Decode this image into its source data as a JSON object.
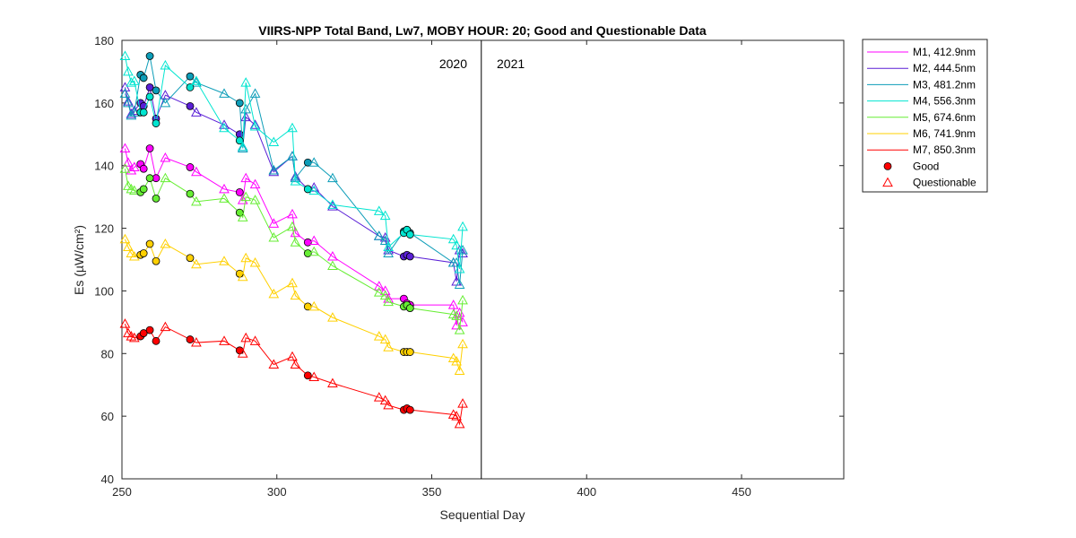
{
  "chart_data": {
    "type": "line",
    "title": "VIIRS-NPP Total Band,  Lw7, MOBY HOUR: 20;  Good and Questionable Data",
    "xlabel": "Sequential Day",
    "ylabel": "Es (µW/cm²)",
    "xlim": [
      250,
      483
    ],
    "ylim": [
      40,
      180
    ],
    "xticks": [
      250,
      300,
      350,
      400,
      450
    ],
    "yticks": [
      40,
      60,
      80,
      100,
      120,
      140,
      160,
      180
    ],
    "grid": false,
    "legend_position": "outside-right-top",
    "divider_x": 366,
    "annotations": [
      {
        "text": "2020",
        "x": 360,
        "y": 170,
        "anchor": "end"
      },
      {
        "text": "2021",
        "x": 370,
        "y": 170,
        "anchor": "start"
      }
    ],
    "legend_markers": {
      "good_label": "Good",
      "questionable_label": "Questionable"
    },
    "x": [
      251,
      252,
      253,
      254,
      256,
      257,
      259,
      261,
      264,
      272,
      274,
      283,
      288,
      289,
      290,
      293,
      299,
      305,
      306,
      310,
      312,
      318,
      333,
      335,
      336,
      341,
      342,
      343,
      357,
      358,
      359,
      360
    ],
    "good_indices": [
      4,
      5,
      6,
      7,
      9,
      12,
      19,
      25,
      26,
      27
    ],
    "series": [
      {
        "name": "M1, 412.9nm",
        "color": "#FF00FF",
        "values": [
          145.5,
          141,
          138.5,
          139.5,
          140.5,
          139,
          145.5,
          136,
          142.5,
          139.5,
          138,
          132.5,
          131.5,
          129,
          136,
          134,
          121.5,
          124.5,
          118.5,
          115.5,
          116,
          111,
          101.5,
          100,
          97.5,
          97.5,
          96,
          95.5,
          95.5,
          89,
          93,
          90
        ]
      },
      {
        "name": "M2, 444.5nm",
        "color": "#5A1FD6",
        "values": [
          165,
          160.5,
          156.5,
          157.5,
          160,
          159,
          165,
          155,
          162.5,
          159,
          157,
          153,
          150,
          146,
          155.5,
          153,
          138,
          143,
          136.5,
          132.5,
          133,
          127,
          117.5,
          117,
          113,
          111,
          111.5,
          111,
          109,
          103,
          113,
          112
        ]
      },
      {
        "name": "M3, 481.2nm",
        "color": "#0D9DB8",
        "values": [
          163,
          160,
          156,
          157,
          169,
          168,
          175,
          164,
          160,
          168.5,
          166.5,
          163,
          160,
          145.5,
          158,
          163,
          138.5,
          143,
          136,
          141,
          141,
          136,
          117.5,
          116,
          112,
          119,
          119.5,
          118.5,
          109,
          109,
          102,
          113
        ]
      },
      {
        "name": "M4, 556.3nm",
        "color": "#00E5D0",
        "values": [
          175,
          170,
          166.5,
          167,
          157,
          157,
          162,
          153.5,
          172,
          165,
          167,
          152,
          148,
          146,
          166.5,
          152.5,
          147.5,
          152,
          135,
          132.5,
          132,
          127.5,
          125.5,
          124,
          114,
          118.5,
          119.5,
          118,
          116.5,
          114.5,
          107,
          120.5
        ]
      },
      {
        "name": "M5, 674.6nm",
        "color": "#66EE33",
        "values": [
          139,
          133.5,
          132.5,
          132,
          131.5,
          132.5,
          136,
          129.5,
          136,
          131,
          128.5,
          129.5,
          125,
          123.5,
          130,
          129,
          117,
          120.5,
          115.5,
          112,
          112.5,
          108,
          99.5,
          98.5,
          96.5,
          95,
          95.5,
          94.5,
          92.5,
          92,
          87.5,
          97
        ]
      },
      {
        "name": "M6, 741.9nm",
        "color": "#FFD000",
        "values": [
          116.5,
          114,
          112,
          111,
          111.5,
          112,
          115,
          109.5,
          115,
          110.5,
          108.5,
          109.5,
          105.5,
          104.5,
          110.5,
          109,
          99,
          102.5,
          98.5,
          95,
          95,
          91.5,
          85.5,
          84.5,
          82,
          80.5,
          80.5,
          80.5,
          78.5,
          77.5,
          74.5,
          83
        ]
      },
      {
        "name": "M7, 850.3nm",
        "color": "#FF0000",
        "values": [
          89.5,
          86.5,
          85.5,
          85,
          85.5,
          86.5,
          87.5,
          84,
          88.5,
          84.5,
          83.5,
          84,
          81,
          80,
          85,
          84,
          76.5,
          79,
          76.5,
          73,
          72.5,
          70.5,
          66,
          65,
          63.5,
          62,
          62.5,
          62,
          60.5,
          60,
          57.5,
          64
        ]
      }
    ]
  }
}
